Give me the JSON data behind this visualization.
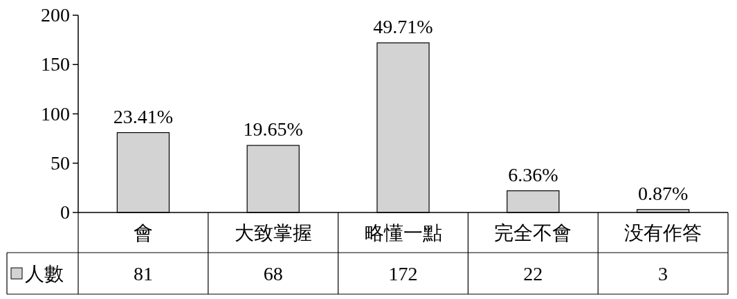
{
  "chart_data": {
    "type": "bar",
    "categories": [
      "會",
      "大致掌握",
      "略懂一點",
      "完全不會",
      "没有作答"
    ],
    "series": [
      {
        "name": "人數",
        "color": "#d3d3d3",
        "values": [
          81,
          68,
          172,
          22,
          3
        ],
        "value_labels": [
          "81",
          "68",
          "172",
          "22",
          "3"
        ]
      }
    ],
    "annotations": [
      {
        "text": "23.41%",
        "x": "會",
        "y": 81
      },
      {
        "text": "19.65%",
        "x": "大致掌握",
        "y": 68
      },
      {
        "text": "49.71%",
        "x": "略懂一點",
        "y": 172
      },
      {
        "text": "6.36%",
        "x": "完全不會",
        "y": 22
      },
      {
        "text": "0.87%",
        "x": "没有作答",
        "y": 3
      }
    ],
    "ylim": [
      0,
      200
    ],
    "yticks": [
      0,
      50,
      100,
      150,
      200
    ],
    "grid": false,
    "legend": "bottom left"
  }
}
